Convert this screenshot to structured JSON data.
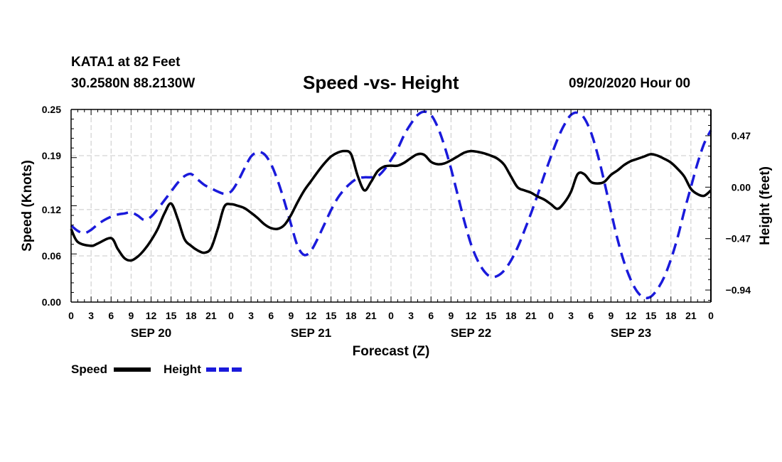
{
  "header": {
    "station": "KATA1 at 82 Feet",
    "coords": "30.2580N 88.2130W",
    "title": "Speed -vs- Height",
    "run_time": "09/20/2020 Hour 00"
  },
  "chart_data": {
    "type": "line",
    "title": "Speed -vs- Height",
    "xlabel": "Forecast (Z)",
    "ylabel": "Speed (Knots)",
    "y2label": "Height (feet)",
    "xlim": [
      0,
      96
    ],
    "ylim": [
      0,
      0.25
    ],
    "y2lim": [
      -1.05,
      0.71
    ],
    "x_ticks": [
      0,
      3,
      6,
      9,
      12,
      15,
      18,
      21,
      24,
      27,
      30,
      33,
      36,
      39,
      42,
      45,
      48,
      51,
      54,
      57,
      60,
      63,
      66,
      69,
      72,
      75,
      78,
      81,
      84,
      87,
      90,
      93,
      96
    ],
    "x_tick_labels": [
      "0",
      "3",
      "6",
      "9",
      "12",
      "15",
      "18",
      "21",
      "0",
      "3",
      "6",
      "9",
      "12",
      "15",
      "18",
      "21",
      "0",
      "3",
      "6",
      "9",
      "12",
      "15",
      "18",
      "21",
      "0",
      "3",
      "6",
      "9",
      "12",
      "15",
      "18",
      "21",
      "0"
    ],
    "date_labels": [
      {
        "x": 12,
        "label": "SEP 20"
      },
      {
        "x": 36,
        "label": "SEP 21"
      },
      {
        "x": 60,
        "label": "SEP 22"
      },
      {
        "x": 84,
        "label": "SEP 23"
      }
    ],
    "y_ticks": [
      0.0,
      0.06,
      0.12,
      0.19,
      0.25
    ],
    "y_tick_labels": [
      "0.00",
      "0.06",
      "0.12",
      "0.19",
      "0.25"
    ],
    "y2_ticks": [
      0.47,
      0.0,
      -0.47,
      -0.94
    ],
    "y2_tick_labels": [
      "0.47",
      "0.00",
      "−0.47",
      "−0.94"
    ],
    "grid": true,
    "series": [
      {
        "name": "Speed",
        "axis": "left",
        "color": "#000000",
        "dash": "solid",
        "x": [
          0,
          1,
          3,
          4,
          6,
          7,
          8,
          9,
          10,
          11,
          12,
          13,
          14,
          15,
          16,
          17,
          18,
          19,
          20,
          21,
          22,
          23,
          24,
          25,
          26,
          27,
          28,
          29,
          30,
          31,
          32,
          33,
          34,
          35,
          36,
          37,
          38,
          39,
          40,
          41,
          42,
          43,
          44,
          45,
          46,
          47,
          48,
          49,
          50,
          51,
          52,
          53,
          54,
          55,
          56,
          57,
          58,
          59,
          60,
          61,
          62,
          63,
          64,
          65,
          66,
          67,
          68,
          69,
          70,
          71,
          72,
          73,
          74,
          75,
          76,
          77,
          78,
          79,
          80,
          81,
          82,
          83,
          84,
          85,
          86,
          87,
          88,
          89,
          90,
          91,
          92,
          93,
          94,
          95,
          96
        ],
        "values": [
          0.095,
          0.078,
          0.073,
          0.076,
          0.083,
          0.069,
          0.057,
          0.054,
          0.059,
          0.068,
          0.08,
          0.095,
          0.115,
          0.128,
          0.108,
          0.082,
          0.073,
          0.067,
          0.064,
          0.07,
          0.095,
          0.124,
          0.127,
          0.125,
          0.122,
          0.116,
          0.109,
          0.101,
          0.096,
          0.095,
          0.1,
          0.113,
          0.13,
          0.145,
          0.157,
          0.169,
          0.18,
          0.189,
          0.194,
          0.196,
          0.192,
          0.164,
          0.145,
          0.156,
          0.17,
          0.176,
          0.177,
          0.177,
          0.181,
          0.187,
          0.192,
          0.191,
          0.182,
          0.179,
          0.18,
          0.184,
          0.189,
          0.194,
          0.196,
          0.195,
          0.193,
          0.19,
          0.186,
          0.178,
          0.163,
          0.149,
          0.145,
          0.142,
          0.137,
          0.133,
          0.127,
          0.121,
          0.129,
          0.143,
          0.166,
          0.166,
          0.156,
          0.154,
          0.156,
          0.165,
          0.171,
          0.178,
          0.183,
          0.186,
          0.189,
          0.192,
          0.19,
          0.186,
          0.181,
          0.173,
          0.163,
          0.147,
          0.14,
          0.138,
          0.145
        ]
      },
      {
        "name": "Height",
        "axis": "right",
        "color": "#1a1adb",
        "dash": "dashed",
        "x": [
          0,
          1,
          2,
          3,
          4,
          5,
          6,
          7,
          8,
          9,
          10,
          11,
          12,
          13,
          14,
          15,
          16,
          17,
          18,
          19,
          20,
          21,
          22,
          23,
          24,
          25,
          26,
          27,
          28,
          29,
          30,
          31,
          32,
          33,
          34,
          35,
          36,
          37,
          38,
          39,
          40,
          41,
          42,
          43,
          44,
          45,
          46,
          47,
          48,
          49,
          50,
          51,
          52,
          53,
          54,
          55,
          56,
          57,
          58,
          59,
          60,
          61,
          62,
          63,
          64,
          65,
          66,
          67,
          68,
          69,
          70,
          71,
          72,
          73,
          74,
          75,
          76,
          77,
          78,
          79,
          80,
          81,
          82,
          83,
          84,
          85,
          86,
          87,
          88,
          89,
          90,
          91,
          92,
          93,
          94,
          95,
          96
        ],
        "values": [
          -0.35,
          -0.4,
          -0.42,
          -0.39,
          -0.34,
          -0.3,
          -0.27,
          -0.25,
          -0.24,
          -0.23,
          -0.26,
          -0.3,
          -0.27,
          -0.2,
          -0.12,
          -0.04,
          0.04,
          0.1,
          0.12,
          0.07,
          0.02,
          -0.01,
          -0.04,
          -0.06,
          -0.04,
          0.05,
          0.17,
          0.28,
          0.32,
          0.3,
          0.21,
          0.06,
          -0.13,
          -0.34,
          -0.54,
          -0.62,
          -0.58,
          -0.47,
          -0.34,
          -0.21,
          -0.1,
          -0.02,
          0.04,
          0.08,
          0.09,
          0.09,
          0.1,
          0.16,
          0.25,
          0.35,
          0.48,
          0.58,
          0.66,
          0.69,
          0.66,
          0.55,
          0.38,
          0.17,
          -0.07,
          -0.31,
          -0.52,
          -0.67,
          -0.77,
          -0.82,
          -0.81,
          -0.76,
          -0.67,
          -0.55,
          -0.4,
          -0.24,
          -0.07,
          0.11,
          0.28,
          0.44,
          0.57,
          0.66,
          0.68,
          0.63,
          0.5,
          0.3,
          0.05,
          -0.22,
          -0.48,
          -0.69,
          -0.85,
          -0.96,
          -1.01,
          -1.0,
          -0.93,
          -0.82,
          -0.66,
          -0.46,
          -0.22,
          0.0,
          0.22,
          0.4,
          0.52
        ]
      }
    ],
    "legend": [
      {
        "label": "Speed",
        "color": "#000000",
        "dash": "solid"
      },
      {
        "label": "Height",
        "color": "#1a1adb",
        "dash": "dashed"
      }
    ],
    "legend_position": "bottom-left"
  }
}
